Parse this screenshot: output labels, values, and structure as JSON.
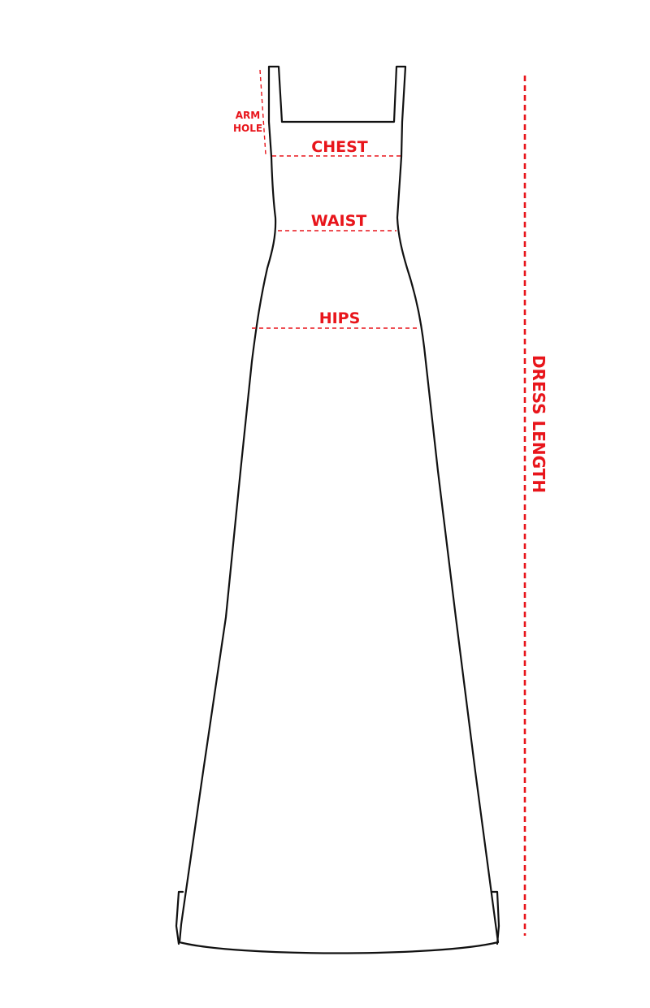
{
  "colors": {
    "measure": "#e8151b",
    "outline": "#111111",
    "background": "#ffffff"
  },
  "labels": {
    "arm_hole_line1": "ARM",
    "arm_hole_line2": "HOLE",
    "chest": "CHEST",
    "waist": "WAIST",
    "hips": "HIPS",
    "dress_length": "DRESS LENGTH"
  }
}
